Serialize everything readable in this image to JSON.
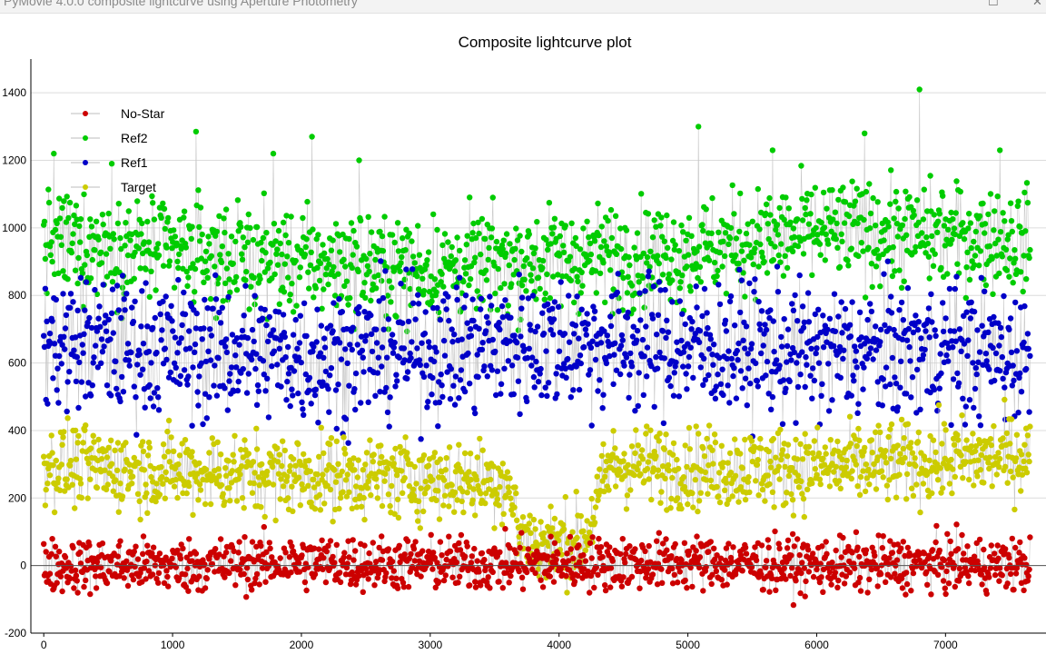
{
  "window": {
    "title": "PyMovie 4.0.0 composite lightcurve using Aperture Photometry",
    "maximize_glyph": "☐",
    "close_glyph": "✕"
  },
  "chart_data": {
    "type": "scatter",
    "title": "Composite lightcurve plot",
    "xlabel": "",
    "ylabel": "",
    "xlim": [
      -100,
      7780
    ],
    "ylim": [
      -200,
      1500
    ],
    "x_ticks": [
      0,
      1000,
      2000,
      3000,
      4000,
      5000,
      6000,
      7000
    ],
    "y_ticks": [
      -200,
      0,
      200,
      400,
      600,
      800,
      1000,
      1200,
      1400
    ],
    "grid": true,
    "legend_position": "top-left",
    "frames": 7660,
    "connecting_line_color": "#c8c8c8",
    "zero_line_color": "#555555",
    "series": [
      {
        "name": "No-Star",
        "color": "#cc0000",
        "mean": 0,
        "spread": 40,
        "x": [
          0,
          1000,
          2000,
          3000,
          4000,
          5000,
          6000,
          7000,
          7660
        ],
        "trend": [
          0,
          0,
          10,
          5,
          5,
          10,
          0,
          5,
          0
        ]
      },
      {
        "name": "Ref2",
        "color": "#00cc00",
        "mean": 930,
        "spread": 75,
        "x": [
          0,
          1000,
          2000,
          3000,
          4000,
          5000,
          6000,
          7000,
          7660
        ],
        "trend": [
          960,
          930,
          900,
          880,
          910,
          930,
          990,
          980,
          960
        ],
        "peaks": [
          [
            80,
            1220
          ],
          [
            530,
            1190
          ],
          [
            1180,
            1285
          ],
          [
            1780,
            1220
          ],
          [
            2080,
            1270
          ],
          [
            2450,
            1200
          ],
          [
            5080,
            1300
          ],
          [
            5660,
            1230
          ],
          [
            6370,
            1280
          ],
          [
            6800,
            1410
          ],
          [
            7420,
            1230
          ]
        ]
      },
      {
        "name": "Ref1",
        "color": "#0000c8",
        "mean": 640,
        "spread": 100,
        "x": [
          0,
          1000,
          2000,
          3000,
          4000,
          5000,
          6000,
          7000,
          7660
        ],
        "trend": [
          660,
          640,
          620,
          640,
          660,
          650,
          630,
          640,
          620
        ]
      },
      {
        "name": "Target",
        "color": "#cccc00",
        "mean": 280,
        "spread": 60,
        "x": [
          0,
          1000,
          3600,
          3700,
          3900,
          4200,
          4400,
          5000,
          6000,
          7000,
          7660
        ],
        "trend": [
          300,
          280,
          250,
          90,
          60,
          80,
          300,
          290,
          290,
          310,
          330
        ]
      }
    ]
  }
}
